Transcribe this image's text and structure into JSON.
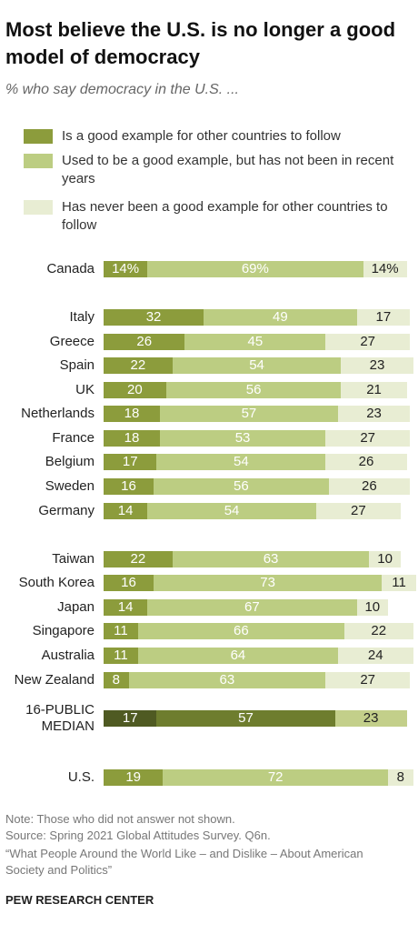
{
  "chart_data": {
    "type": "stacked-bar-horizontal",
    "title": "Most believe the U.S. is no longer a good model of democracy",
    "subtitle": "% who say democracy in the U.S. ...",
    "categories": [
      "Canada",
      "Italy",
      "Greece",
      "Spain",
      "UK",
      "Netherlands",
      "France",
      "Belgium",
      "Sweden",
      "Germany",
      "Taiwan",
      "South Korea",
      "Japan",
      "Singapore",
      "Australia",
      "New Zealand",
      "16-PUBLIC MEDIAN",
      "U.S."
    ],
    "xlim": [
      0,
      100
    ],
    "series": [
      {
        "name": "Is a good example for other countries to follow",
        "color": "#8c9c3c",
        "colors": [
          "#8c9c3c",
          "#8c9c3c",
          "#8c9c3c",
          "#8c9c3c",
          "#8c9c3c",
          "#8c9c3c",
          "#8c9c3c",
          "#8c9c3c",
          "#8c9c3c",
          "#8c9c3c",
          "#8c9c3c",
          "#8c9c3c",
          "#8c9c3c",
          "#8c9c3c",
          "#8c9c3c",
          "#8c9c3c",
          "#4f5a22",
          "#8c9c3c"
        ],
        "values": [
          14,
          32,
          26,
          22,
          20,
          18,
          18,
          17,
          16,
          14,
          22,
          16,
          14,
          11,
          11,
          8,
          17,
          19
        ],
        "value_labels": [
          "14%",
          "32",
          "26",
          "22",
          "20",
          "18",
          "18",
          "17",
          "16",
          "14",
          "22",
          "16",
          "14",
          "11",
          "11",
          "8",
          "17",
          "19"
        ]
      },
      {
        "name": "Used to be a good example, but has not been in recent years",
        "color": "#bccd82",
        "colors": [
          "#bccd82",
          "#bccd82",
          "#bccd82",
          "#bccd82",
          "#bccd82",
          "#bccd82",
          "#bccd82",
          "#bccd82",
          "#bccd82",
          "#bccd82",
          "#bccd82",
          "#bccd82",
          "#bccd82",
          "#bccd82",
          "#bccd82",
          "#bccd82",
          "#6e7d2e",
          "#bccd82"
        ],
        "values": [
          69,
          49,
          45,
          54,
          56,
          57,
          53,
          54,
          56,
          54,
          63,
          73,
          67,
          66,
          64,
          63,
          57,
          72
        ],
        "value_labels": [
          "69%",
          "49",
          "45",
          "54",
          "56",
          "57",
          "53",
          "54",
          "56",
          "54",
          "63",
          "73",
          "67",
          "66",
          "64",
          "63",
          "57",
          "72"
        ]
      },
      {
        "name": "Has never been a good example for other countries to follow",
        "color": "#e8edd3",
        "colors": [
          "#e8edd3",
          "#e8edd3",
          "#e8edd3",
          "#e8edd3",
          "#e8edd3",
          "#e8edd3",
          "#e8edd3",
          "#e8edd3",
          "#e8edd3",
          "#e8edd3",
          "#e8edd3",
          "#e8edd3",
          "#e8edd3",
          "#e8edd3",
          "#e8edd3",
          "#e8edd3",
          "#c3cf8a",
          "#e8edd3"
        ],
        "values": [
          14,
          17,
          27,
          23,
          21,
          23,
          27,
          26,
          26,
          27,
          10,
          11,
          10,
          22,
          24,
          27,
          23,
          8
        ],
        "value_labels": [
          "14%",
          "17",
          "27",
          "23",
          "21",
          "23",
          "27",
          "26",
          "26",
          "27",
          "10",
          "11",
          "10",
          "22",
          "24",
          "27",
          "23",
          "8"
        ]
      }
    ],
    "notes": [
      "Note: Those who did not answer not shown.",
      "Source: Spring 2021 Global Attitudes Survey. Q6n.",
      "“What People Around the World Like – and Dislike – About American Society and Politics”"
    ],
    "credit": "PEW RESEARCH CENTER"
  }
}
